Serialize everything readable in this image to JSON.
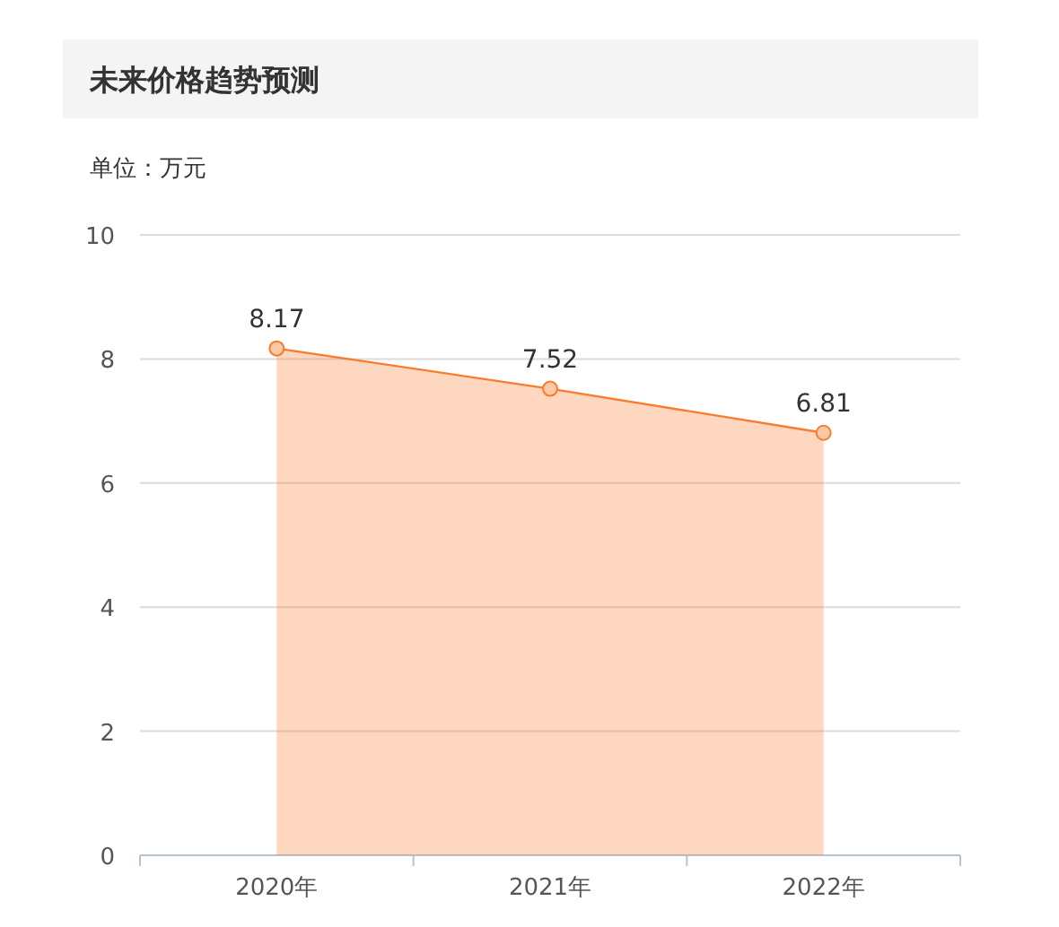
{
  "chart_data": {
    "type": "area",
    "title": "未来价格趋势预测",
    "subtitle": "单位：万元",
    "categories": [
      "2020年",
      "2021年",
      "2022年"
    ],
    "series": [
      {
        "color": "#f97b2c",
        "values": [
          8.17,
          7.52,
          6.81
        ]
      }
    ],
    "ylim": [
      0,
      10
    ],
    "yticks": [
      0,
      2,
      4,
      6,
      8,
      10
    ],
    "grid": "y",
    "data_labels": true,
    "marker": "circle"
  }
}
